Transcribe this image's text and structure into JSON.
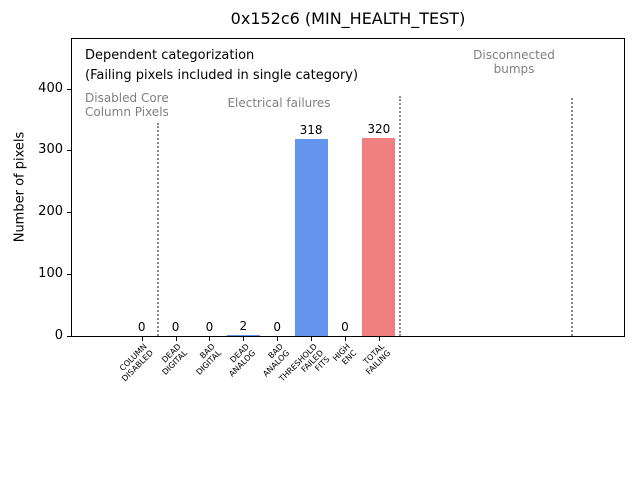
{
  "figure": {
    "background_color": "#ffffff"
  },
  "chart_data": {
    "type": "bar",
    "title": "0x152c6 (MIN_HEALTH_TEST)",
    "xlabel": "",
    "ylabel": "Number of pixels",
    "xlim": [
      -2.06,
      14.24
    ],
    "ylim": [
      0,
      480
    ],
    "yticks": [
      0,
      100,
      200,
      300,
      400
    ],
    "grid": false,
    "legend": false,
    "categories": [
      "COLUMN\nDISABLED",
      "DEAD\nDIGITAL",
      "BAD\nDIGITAL",
      "DEAD\nANALOG",
      "BAD\nANALOG",
      "THRESHOLD\nFAILED\nFITS",
      "HIGH\nENC",
      "TOTAL\nFAILING"
    ],
    "values": [
      0,
      0,
      0,
      2,
      0,
      318,
      0,
      320
    ],
    "bar_colors": [
      "#6495ED",
      "#6495ED",
      "#6495ED",
      "#6495ED",
      "#6495ED",
      "#6495ED",
      "#6495ED",
      "#F08080"
    ],
    "value_label_color": "#000000",
    "axis_color": "#000000",
    "annotations": [
      {
        "text": "Dependent categorization",
        "color": "#000000",
        "align": "left"
      },
      {
        "text": "(Failing pixels included in single category)",
        "color": "#000000",
        "align": "left"
      },
      {
        "text": "Disabled Core\nColumn Pixels",
        "color": "#808080",
        "align": "left"
      },
      {
        "text": "Electrical failures",
        "color": "#808080",
        "align": "center"
      },
      {
        "text": "Disconnected\nbumps",
        "color": "#808080",
        "align": "center"
      }
    ],
    "separators": {
      "style": "dotted",
      "color": "#8a8a8a",
      "positions_x": [
        0.47,
        7.62,
        12.71
      ]
    }
  }
}
